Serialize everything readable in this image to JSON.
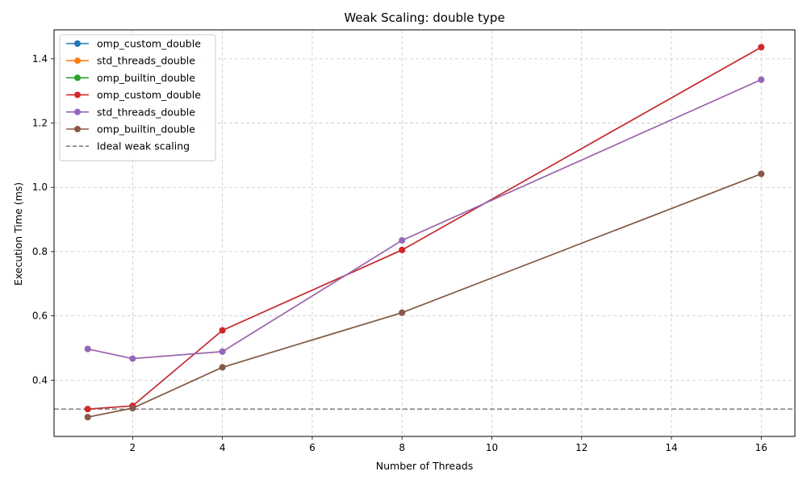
{
  "chart_data": {
    "type": "line",
    "title": "Weak Scaling: double type",
    "xlabel": "Number of Threads",
    "ylabel": "Execution Time (ms)",
    "xlim": [
      0.25,
      16.75
    ],
    "ylim": [
      0.225,
      1.49
    ],
    "xticks": [
      2,
      4,
      6,
      8,
      10,
      12,
      14,
      16
    ],
    "yticks": [
      0.4,
      0.6,
      0.8,
      1.0,
      1.2,
      1.4
    ],
    "ytick_labels": [
      "0.4",
      "0.6",
      "0.8",
      "1.0",
      "1.2",
      "1.4"
    ],
    "grid": true,
    "legend_position": "upper left",
    "x": [
      1,
      2,
      4,
      8,
      16
    ],
    "series": [
      {
        "name": "omp_custom_double",
        "color": "#1f77b4",
        "values": [
          0.31,
          0.32,
          0.555,
          0.805,
          1.436
        ]
      },
      {
        "name": "std_threads_double",
        "color": "#ff7f0e",
        "values": [
          0.497,
          0.467,
          0.489,
          0.835,
          1.335
        ]
      },
      {
        "name": "omp_builtin_double",
        "color": "#2ca02c",
        "values": [
          0.285,
          0.313,
          0.44,
          0.61,
          1.042
        ]
      },
      {
        "name": "omp_custom_double",
        "color": "#d62728",
        "values": [
          0.31,
          0.32,
          0.555,
          0.805,
          1.436
        ]
      },
      {
        "name": "std_threads_double",
        "color": "#9467bd",
        "values": [
          0.497,
          0.467,
          0.489,
          0.835,
          1.335
        ]
      },
      {
        "name": "omp_builtin_double",
        "color": "#8c564b",
        "values": [
          0.285,
          0.313,
          0.44,
          0.61,
          1.042
        ]
      }
    ],
    "reference_line": {
      "name": "Ideal weak scaling",
      "y": 0.31,
      "color": "#7f7f7f",
      "style": "dashed"
    }
  }
}
